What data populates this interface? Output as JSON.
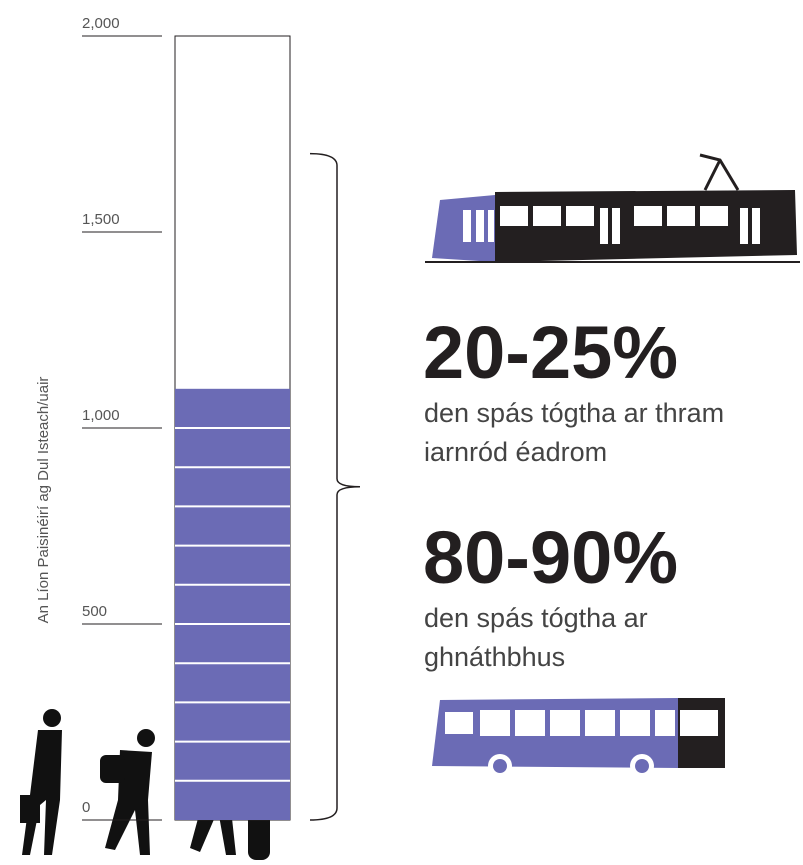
{
  "chart_data": {
    "type": "bar",
    "y_label": "An Líon Paisinéirí ag Dul Isteach/uair",
    "values": [
      1100
    ],
    "segment_size": 100,
    "color": "#6b6bb5",
    "ylim": [
      0,
      2000
    ],
    "yticks": [
      0,
      500,
      {
        "value": 1000,
        "label": "1,000"
      },
      {
        "value": 1500,
        "label": "1,500"
      },
      {
        "value": 2000,
        "label": "2,000"
      }
    ],
    "bracket_range": [
      0,
      1700
    ],
    "annotations": [
      {
        "headline": "20-25%",
        "lines": [
          "den spás tógtha ar thram",
          "iarnród éadrom"
        ]
      },
      {
        "headline": "80-90%",
        "lines": [
          "den spás tógtha ar",
          "ghnáthbhus"
        ]
      }
    ]
  }
}
